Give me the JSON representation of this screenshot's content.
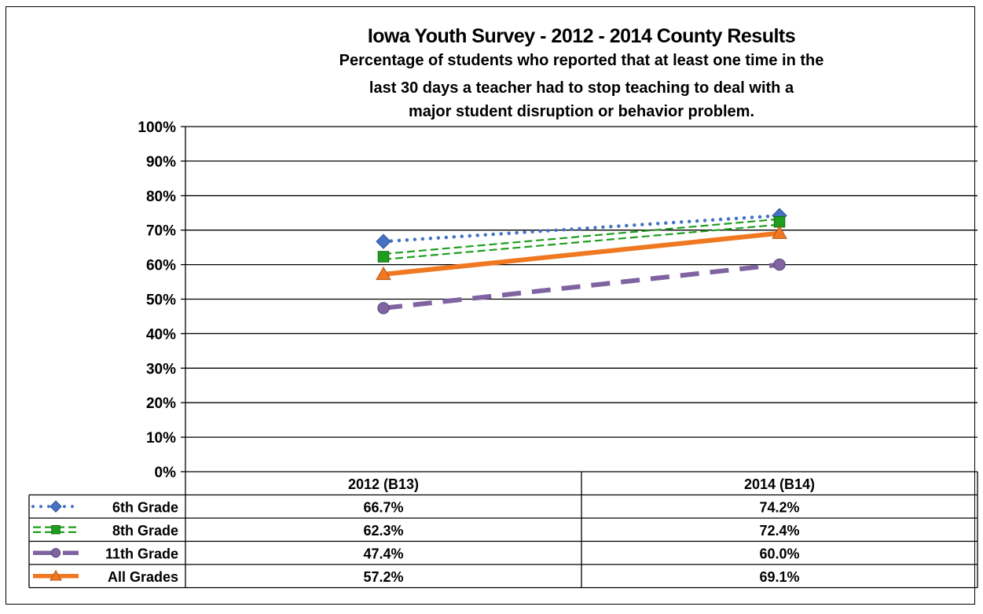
{
  "chart_data": {
    "type": "line",
    "title": "Iowa Youth Survey - 2012 - 2014 County Results",
    "subtitle_lines": [
      "Percentage of students who reported that at least one time in the",
      "last 30 days a teacher had to stop teaching to deal with a",
      "major student disruption or behavior problem."
    ],
    "categories": [
      "2012 (B13)",
      "2014 (B14)"
    ],
    "ylim": [
      0,
      100
    ],
    "y_ticks": [
      "0%",
      "10%",
      "20%",
      "30%",
      "40%",
      "50%",
      "60%",
      "70%",
      "80%",
      "90%",
      "100%"
    ],
    "grid": true,
    "legend": "data-table",
    "series": [
      {
        "name": "6th Grade",
        "values": [
          66.7,
          74.2
        ],
        "labels": [
          "66.7%",
          "74.2%"
        ],
        "color": "#4472c4",
        "marker": "diamond",
        "dash": "dotted"
      },
      {
        "name": "8th Grade",
        "values": [
          62.3,
          72.4
        ],
        "labels": [
          "62.3%",
          "72.4%"
        ],
        "color": "#1e9e1e",
        "marker": "square",
        "dash": "double-dashed"
      },
      {
        "name": "11th Grade",
        "values": [
          47.4,
          60.0
        ],
        "labels": [
          "47.4%",
          "60.0%"
        ],
        "color": "#8064a2",
        "marker": "circle",
        "dash": "long-dash"
      },
      {
        "name": "All Grades",
        "values": [
          57.2,
          69.1
        ],
        "labels": [
          "57.2%",
          "69.1%"
        ],
        "color": "#f07820",
        "marker": "triangle",
        "dash": "solid"
      }
    ]
  }
}
